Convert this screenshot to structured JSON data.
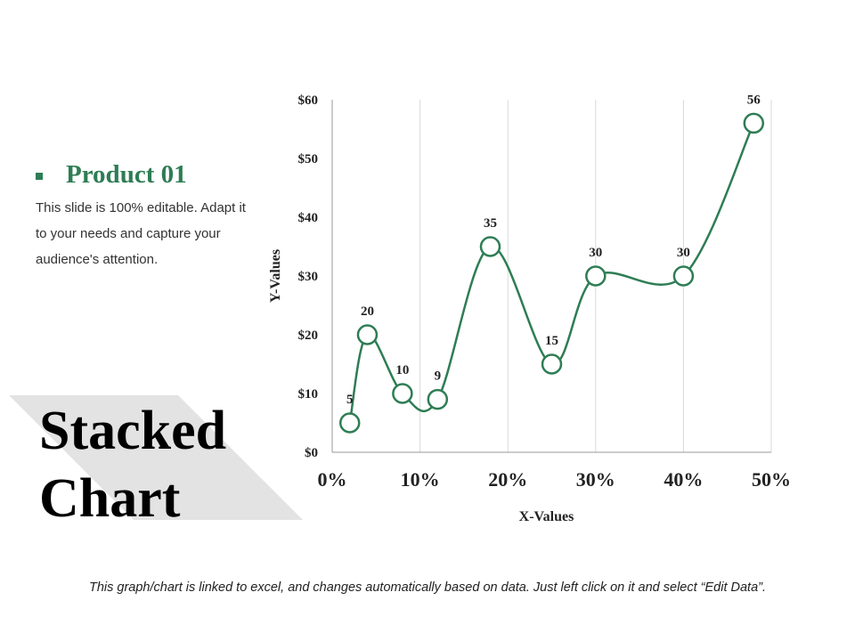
{
  "slide": {
    "title_line1": "Stacked",
    "title_line2": "Chart",
    "legend_label": "Product 01",
    "description": "This slide is 100% editable. Adapt it to your needs and capture your audience's attention.",
    "footer": "This graph/chart is linked to excel, and changes automatically based on data. Just left click on it and select “Edit Data”."
  },
  "colors": {
    "accent": "#2E7D54",
    "grid": "#D9D9D9",
    "band": "#E3E3E3"
  },
  "chart_data": {
    "type": "line",
    "title": "",
    "xlabel": "X-Values",
    "ylabel": "Y-Values",
    "x_tick_labels": [
      "0%",
      "10%",
      "20%",
      "30%",
      "40%",
      "50%"
    ],
    "y_tick_labels": [
      "$0",
      "$10",
      "$20",
      "$30",
      "$40",
      "$50",
      "$60"
    ],
    "xlim": [
      0,
      0.5
    ],
    "ylim": [
      0,
      60
    ],
    "grid": "vertical",
    "smooth": true,
    "series": [
      {
        "name": "Product 01",
        "x": [
          0.02,
          0.04,
          0.08,
          0.12,
          0.18,
          0.25,
          0.3,
          0.4,
          0.48
        ],
        "y": [
          5,
          20,
          10,
          9,
          35,
          15,
          30,
          30,
          56
        ],
        "labels": [
          "5",
          "20",
          "10",
          "9",
          "35",
          "15",
          "30",
          "30",
          "56"
        ]
      }
    ]
  }
}
